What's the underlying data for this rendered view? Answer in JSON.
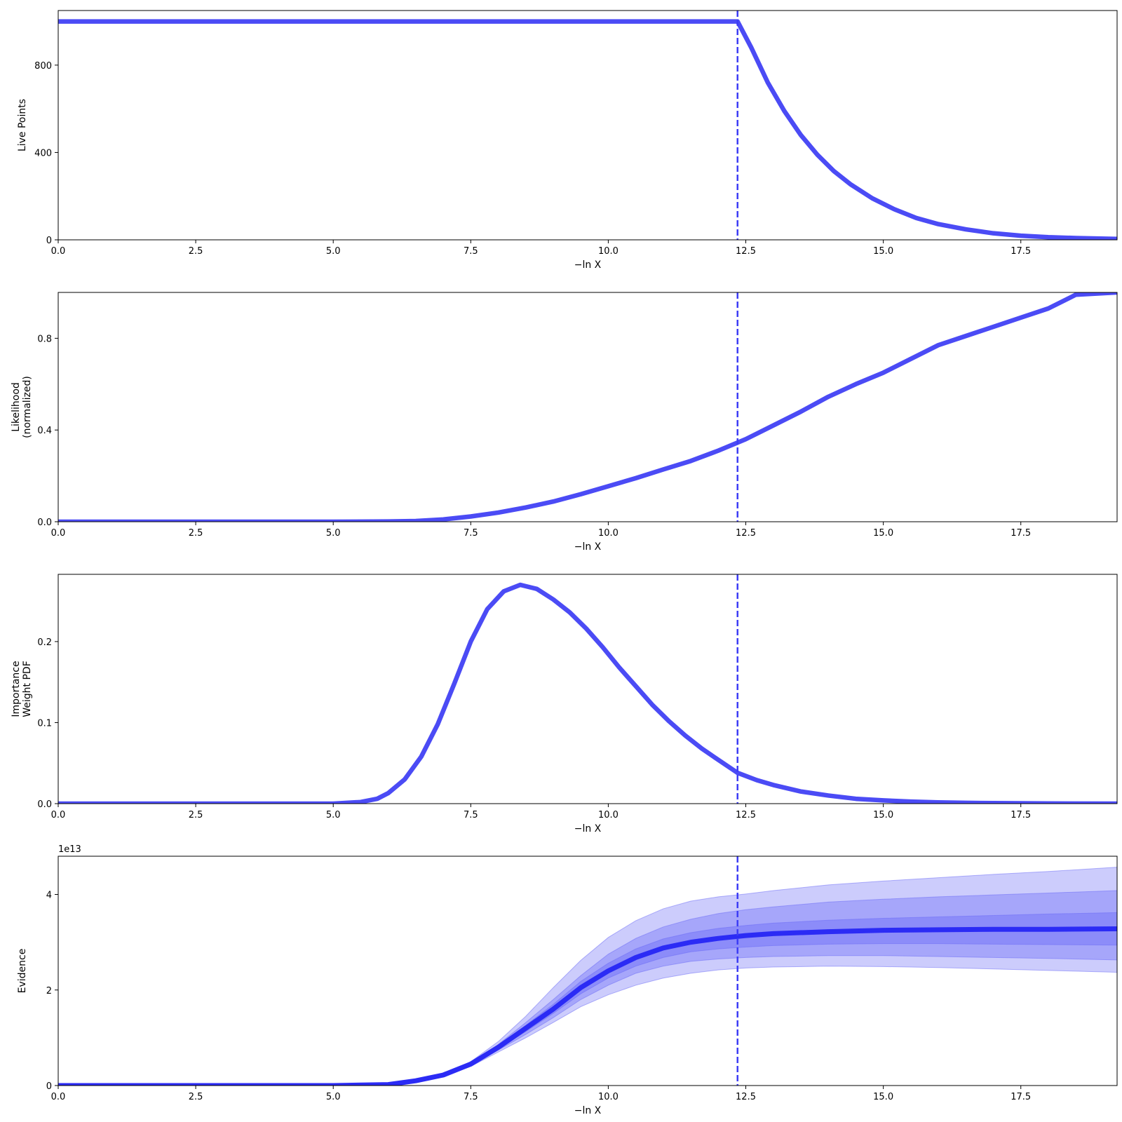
{
  "chart_data": [
    {
      "type": "line",
      "xlabel": "−ln X",
      "ylabel": [
        "Live Points"
      ],
      "xlim": [
        0,
        19.25
      ],
      "ylim": [
        0,
        1050
      ],
      "xticks": [
        0,
        2.5,
        5,
        7.5,
        10,
        12.5,
        15,
        17.5
      ],
      "xtick_labels": [
        "0.0",
        "2.5",
        "5.0",
        "7.5",
        "10.0",
        "12.5",
        "15.0",
        "17.5"
      ],
      "yticks": [
        0,
        400,
        800
      ],
      "ytick_labels": [
        "0",
        "400",
        "800"
      ],
      "vline_x": 12.35,
      "series": [
        {
          "x": [
            0,
            12.35,
            12.6,
            12.9,
            13.2,
            13.5,
            13.8,
            14.1,
            14.4,
            14.8,
            15.2,
            15.6,
            16.0,
            16.5,
            17.0,
            17.5,
            18.0,
            18.5,
            19.25
          ],
          "y": [
            1000,
            1000,
            880,
            720,
            590,
            480,
            390,
            315,
            255,
            190,
            140,
            100,
            72,
            48,
            30,
            19,
            12,
            8,
            4
          ]
        }
      ]
    },
    {
      "type": "line",
      "xlabel": "−ln X",
      "ylabel": [
        "Likelihood",
        "(normalized)"
      ],
      "xlim": [
        0,
        19.25
      ],
      "ylim": [
        0,
        1.0
      ],
      "xticks": [
        0,
        2.5,
        5,
        7.5,
        10,
        12.5,
        15,
        17.5
      ],
      "xtick_labels": [
        "0.0",
        "2.5",
        "5.0",
        "7.5",
        "10.0",
        "12.5",
        "15.0",
        "17.5"
      ],
      "yticks": [
        0,
        0.4,
        0.8
      ],
      "ytick_labels": [
        "0.0",
        "0.4",
        "0.8"
      ],
      "vline_x": 12.35,
      "series": [
        {
          "x": [
            0,
            5.0,
            6.0,
            6.5,
            7.0,
            7.5,
            8.0,
            8.5,
            9.0,
            9.5,
            10.0,
            10.5,
            11.0,
            11.5,
            12.0,
            12.5,
            13.0,
            13.5,
            14.0,
            14.5,
            15.0,
            15.5,
            16.0,
            16.5,
            17.0,
            17.5,
            18.0,
            18.5,
            19.25
          ],
          "y": [
            0,
            0,
            0.001,
            0.003,
            0.01,
            0.023,
            0.04,
            0.062,
            0.088,
            0.12,
            0.155,
            0.19,
            0.228,
            0.265,
            0.31,
            0.36,
            0.42,
            0.48,
            0.545,
            0.6,
            0.65,
            0.71,
            0.77,
            0.81,
            0.85,
            0.89,
            0.93,
            0.99,
            1.0
          ]
        }
      ]
    },
    {
      "type": "line",
      "xlabel": "−ln X",
      "ylabel": [
        "Importance",
        "Weight PDF"
      ],
      "xlim": [
        0,
        19.25
      ],
      "ylim": [
        0,
        0.283
      ],
      "xticks": [
        0,
        2.5,
        5,
        7.5,
        10,
        12.5,
        15,
        17.5
      ],
      "xtick_labels": [
        "0.0",
        "2.5",
        "5.0",
        "7.5",
        "10.0",
        "12.5",
        "15.0",
        "17.5"
      ],
      "yticks": [
        0,
        0.1,
        0.2
      ],
      "ytick_labels": [
        "0.0",
        "0.1",
        "0.2"
      ],
      "vline_x": 12.35,
      "series": [
        {
          "x": [
            0,
            5.0,
            5.5,
            5.8,
            6.0,
            6.3,
            6.6,
            6.9,
            7.2,
            7.5,
            7.8,
            8.1,
            8.4,
            8.7,
            9.0,
            9.3,
            9.6,
            9.9,
            10.2,
            10.5,
            10.8,
            11.1,
            11.4,
            11.7,
            12.0,
            12.35,
            12.7,
            13.0,
            13.5,
            14.0,
            14.5,
            15.0,
            15.5,
            16.0,
            16.5,
            17.0,
            17.5,
            18.0,
            19.25
          ],
          "y": [
            0,
            0,
            0.002,
            0.006,
            0.013,
            0.03,
            0.058,
            0.098,
            0.148,
            0.2,
            0.24,
            0.262,
            0.27,
            0.265,
            0.252,
            0.236,
            0.216,
            0.193,
            0.168,
            0.145,
            0.122,
            0.102,
            0.084,
            0.068,
            0.054,
            0.038,
            0.029,
            0.023,
            0.015,
            0.01,
            0.006,
            0.004,
            0.0025,
            0.0015,
            0.001,
            0.0006,
            0.0004,
            0.0002,
            0
          ]
        }
      ]
    },
    {
      "type": "area",
      "xlabel": "−ln X",
      "ylabel": [
        "Evidence"
      ],
      "offset_label": "1e13",
      "xlim": [
        0,
        19.25
      ],
      "ylim": [
        0,
        4.8
      ],
      "xticks": [
        0,
        2.5,
        5,
        7.5,
        10,
        12.5,
        15,
        17.5
      ],
      "xtick_labels": [
        "0.0",
        "2.5",
        "5.0",
        "7.5",
        "10.0",
        "12.5",
        "15.0",
        "17.5"
      ],
      "yticks": [
        0,
        2,
        4
      ],
      "ytick_labels": [
        "0",
        "2",
        "4"
      ],
      "vline_x": 12.35,
      "x": [
        0,
        5.0,
        6.0,
        6.5,
        7.0,
        7.5,
        8.0,
        8.5,
        9.0,
        9.5,
        10.0,
        10.5,
        11.0,
        11.5,
        12.0,
        12.5,
        13.0,
        14.0,
        15.0,
        16.0,
        17.0,
        18.0,
        19.25
      ],
      "median": [
        0,
        0,
        0.02,
        0.1,
        0.22,
        0.45,
        0.8,
        1.2,
        1.6,
        2.05,
        2.4,
        2.68,
        2.88,
        3.0,
        3.08,
        3.14,
        3.18,
        3.22,
        3.25,
        3.26,
        3.27,
        3.27,
        3.28
      ],
      "bands": [
        {
          "name": "3sigma",
          "lower": [
            0,
            0,
            0.02,
            0.09,
            0.2,
            0.4,
            0.7,
            1.0,
            1.32,
            1.65,
            1.9,
            2.1,
            2.25,
            2.35,
            2.42,
            2.46,
            2.48,
            2.5,
            2.49,
            2.47,
            2.44,
            2.41,
            2.37
          ],
          "upper": [
            0,
            0,
            0.02,
            0.11,
            0.24,
            0.5,
            0.92,
            1.45,
            2.05,
            2.62,
            3.1,
            3.45,
            3.7,
            3.86,
            3.95,
            4.01,
            4.08,
            4.2,
            4.28,
            4.35,
            4.42,
            4.48,
            4.57
          ]
        },
        {
          "name": "2sigma",
          "lower": [
            0,
            0,
            0.02,
            0.09,
            0.21,
            0.42,
            0.74,
            1.07,
            1.42,
            1.8,
            2.1,
            2.35,
            2.5,
            2.6,
            2.65,
            2.68,
            2.7,
            2.72,
            2.72,
            2.7,
            2.68,
            2.66,
            2.63
          ]
        },
        {
          "name": "2sigma_upper_placeholder"
        }
      ],
      "bands2_upper": [
        0,
        0,
        0.02,
        0.105,
        0.23,
        0.48,
        0.86,
        1.32,
        1.8,
        2.3,
        2.75,
        3.08,
        3.32,
        3.48,
        3.6,
        3.68,
        3.74,
        3.84,
        3.9,
        3.95,
        3.99,
        4.03,
        4.08
      ],
      "bands1_lower": [
        0,
        0,
        0.02,
        0.095,
        0.215,
        0.44,
        0.77,
        1.13,
        1.51,
        1.92,
        2.25,
        2.5,
        2.68,
        2.8,
        2.86,
        2.9,
        2.93,
        2.96,
        2.97,
        2.97,
        2.96,
        2.95,
        2.94
      ],
      "bands1_upper": [
        0,
        0,
        0.02,
        0.102,
        0.225,
        0.46,
        0.83,
        1.26,
        1.7,
        2.18,
        2.56,
        2.86,
        3.07,
        3.2,
        3.29,
        3.35,
        3.4,
        3.46,
        3.5,
        3.53,
        3.56,
        3.59,
        3.62
      ]
    }
  ],
  "colors": {
    "line": "#4b4bf5",
    "evidence_line": "#2b2bf5",
    "vline": "#3d3df5",
    "band": "#6a6af7"
  }
}
